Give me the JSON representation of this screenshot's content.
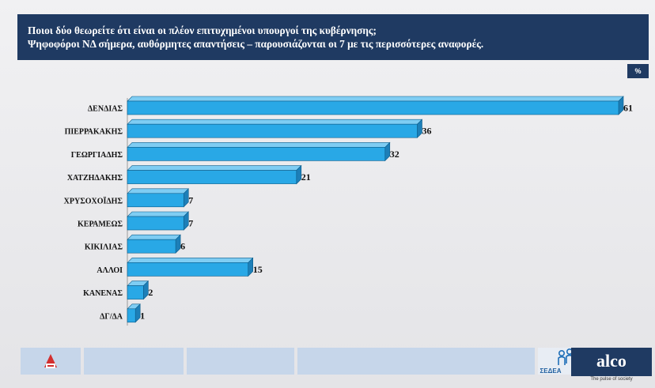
{
  "header": {
    "title_line1": "Ποιοι δύο θεωρείτε ότι είναι οι πλέον επιτυχημένοι υπουργοί της κυβέρνησης;",
    "title_line2": "Ψηφοφόροι ΝΔ σήμερα, αυθόρμητες απαντήσεις – παρουσιάζονται οι 7 με τις περισσότερες αναφορές."
  },
  "unit_label": "%",
  "chart_data": {
    "type": "bar",
    "orientation": "horizontal",
    "categories": [
      "ΔΕΝΔΙΑΣ",
      "ΠΙΕΡΡΑΚΑΚΗΣ",
      "ΓΕΩΡΓΙΑΔΗΣ",
      "ΧΑΤΖΗΔΑΚΗΣ",
      "ΧΡΥΣΟΧΟΪΔΗΣ",
      "ΚΕΡΑΜΕΩΣ",
      "ΚΙΚΙΛΙΑΣ",
      "ΑΛΛΟΙ",
      "ΚΑΝΕΝΑΣ",
      "ΔΓ/ΔΑ"
    ],
    "values": [
      61,
      36,
      32,
      21,
      7,
      7,
      6,
      15,
      2,
      1
    ],
    "xlim": [
      0,
      61
    ],
    "grid": false,
    "legend": "none",
    "bar_color": "#29a8e6"
  },
  "footer": {
    "brand": "alco",
    "tagline": "The pulse of society",
    "partner": "ΣΕΔΕΑ"
  }
}
